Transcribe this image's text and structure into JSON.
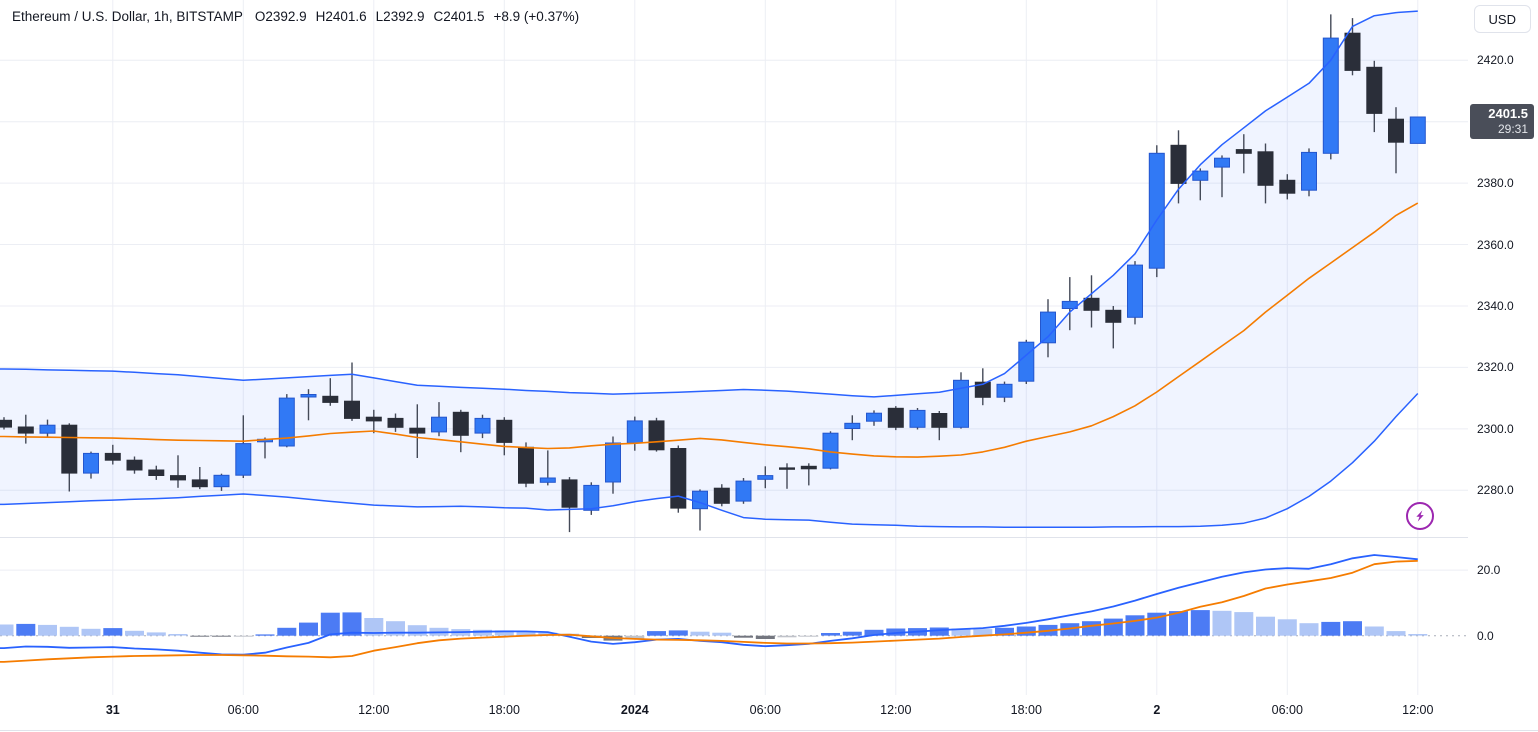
{
  "header": {
    "title": "Ethereum / U.S. Dollar, 1h, BITSTAMP",
    "o": "O2392.9",
    "h": "H2401.6",
    "l": "L2392.9",
    "c": "C2401.5",
    "change": "+8.9 (+0.37%)"
  },
  "currency_button": {
    "label": "USD"
  },
  "price_badge": {
    "price": "2401.5",
    "countdown": "29:31"
  },
  "colors": {
    "up": "#3179f5",
    "up_border": "#2456cd",
    "down": "#2a2e39",
    "down_border": "#2a2e39",
    "wick": "#444a58",
    "bollinger_band": "#2962ff",
    "bollinger_basis": "#f57c00",
    "bollinger_fill": "rgba(41,98,255,0.07)",
    "macd_line": "#2962ff",
    "signal_line": "#f57c00",
    "hist_grow_above": "#4c7bf4",
    "hist_fall_above": "#afc6f6",
    "hist_fall_below": "#73767f",
    "hist_grow_below": "#bfc2c9",
    "grid": "#eceef4",
    "zero_dash": "#a9adb8",
    "badge_bg": "#4a4e59",
    "accent_purple": "#9c27b0"
  },
  "chart_data": {
    "type": "candlestick",
    "symbol": "Ethereum / U.S. Dollar",
    "interval": "1h",
    "exchange": "BITSTAMP",
    "ohlc_display": {
      "open": 2392.9,
      "high": 2401.6,
      "low": 2392.9,
      "close": 2401.5,
      "change": "+8.9 (+0.37%)"
    },
    "last_price": 2401.5,
    "countdown": "29:31",
    "price_axis": {
      "range_top": 2439.6,
      "range_bottom": 2264.8,
      "labels": [
        {
          "label": "2420.0",
          "value": 2420
        },
        {
          "label": "2380.0",
          "value": 2380
        },
        {
          "label": "2360.0",
          "value": 2360
        },
        {
          "label": "2340.0",
          "value": 2340
        },
        {
          "label": "2320.0",
          "value": 2320
        },
        {
          "label": "2300.0",
          "value": 2300
        },
        {
          "label": "2280.0",
          "value": 2280
        }
      ],
      "gridlines": [
        2420,
        2400,
        2380,
        2360,
        2340,
        2320,
        2300,
        2280
      ]
    },
    "time_axis": [
      {
        "label": "31",
        "index": 5,
        "bold": true
      },
      {
        "label": "06:00",
        "index": 11,
        "bold": false
      },
      {
        "label": "12:00",
        "index": 17,
        "bold": false
      },
      {
        "label": "18:00",
        "index": 23,
        "bold": false
      },
      {
        "label": "2024",
        "index": 29,
        "bold": true
      },
      {
        "label": "06:00",
        "index": 35,
        "bold": false
      },
      {
        "label": "12:00",
        "index": 41,
        "bold": false
      },
      {
        "label": "18:00",
        "index": 47,
        "bold": false
      },
      {
        "label": "2",
        "index": 53,
        "bold": true
      },
      {
        "label": "06:00",
        "index": 59,
        "bold": false
      },
      {
        "label": "12:00",
        "index": 65,
        "bold": false
      }
    ],
    "candles": [
      [
        2302.8,
        2303.8,
        2299.8,
        2300.6
      ],
      [
        2300.6,
        2304.6,
        2295.2,
        2298.6
      ],
      [
        2298.6,
        2303.0,
        2297.4,
        2301.2
      ],
      [
        2301.2,
        2301.8,
        2279.6,
        2285.6
      ],
      [
        2285.6,
        2292.6,
        2283.8,
        2292.0
      ],
      [
        2292.0,
        2294.8,
        2288.4,
        2289.8
      ],
      [
        2289.8,
        2291.0,
        2285.4,
        2286.6
      ],
      [
        2286.6,
        2288.0,
        2283.4,
        2284.8
      ],
      [
        2284.8,
        2291.4,
        2280.8,
        2283.4
      ],
      [
        2283.4,
        2287.6,
        2280.4,
        2281.2
      ],
      [
        2281.2,
        2285.4,
        2279.8,
        2284.9
      ],
      [
        2284.9,
        2304.4,
        2284.0,
        2295.2
      ],
      [
        2295.8,
        2297.2,
        2290.4,
        2296.6
      ],
      [
        2294.4,
        2311.3,
        2294.0,
        2310.0
      ],
      [
        2310.4,
        2312.9,
        2302.8,
        2311.2
      ],
      [
        2310.6,
        2316.5,
        2307.5,
        2308.6
      ],
      [
        2309.0,
        2321.6,
        2302.6,
        2303.4
      ],
      [
        2303.8,
        2306.2,
        2298.6,
        2302.6
      ],
      [
        2303.4,
        2305.0,
        2299.0,
        2300.5
      ],
      [
        2300.2,
        2308.0,
        2290.5,
        2298.6
      ],
      [
        2299.0,
        2308.7,
        2297.6,
        2303.8
      ],
      [
        2305.4,
        2306.2,
        2292.4,
        2297.9
      ],
      [
        2298.6,
        2304.6,
        2297.0,
        2303.4
      ],
      [
        2302.8,
        2303.8,
        2291.4,
        2295.6
      ],
      [
        2294.0,
        2295.6,
        2281.0,
        2282.3
      ],
      [
        2282.6,
        2293.0,
        2281.6,
        2284.0
      ],
      [
        2283.4,
        2284.3,
        2266.4,
        2274.5
      ],
      [
        2273.5,
        2282.6,
        2272.0,
        2281.6
      ],
      [
        2282.7,
        2297.5,
        2278.9,
        2295.4
      ],
      [
        2295.4,
        2304.0,
        2292.9,
        2302.6
      ],
      [
        2302.6,
        2303.6,
        2292.6,
        2293.2
      ],
      [
        2293.6,
        2294.6,
        2272.7,
        2274.2
      ],
      [
        2274.0,
        2280.3,
        2266.9,
        2279.7
      ],
      [
        2280.7,
        2282.0,
        2274.8,
        2275.8
      ],
      [
        2276.5,
        2284.0,
        2275.6,
        2283.0
      ],
      [
        2283.6,
        2287.8,
        2280.7,
        2284.8
      ],
      [
        2287.3,
        2288.8,
        2280.5,
        2286.9
      ],
      [
        2287.8,
        2288.8,
        2281.6,
        2287.0
      ],
      [
        2287.2,
        2299.2,
        2286.8,
        2298.6
      ],
      [
        2300.1,
        2304.4,
        2296.3,
        2301.8
      ],
      [
        2302.5,
        2306.0,
        2301.0,
        2305.1
      ],
      [
        2306.7,
        2307.4,
        2299.6,
        2300.5
      ],
      [
        2300.5,
        2306.8,
        2299.8,
        2306.0
      ],
      [
        2305.0,
        2305.8,
        2296.3,
        2300.5
      ],
      [
        2300.5,
        2318.4,
        2300.1,
        2315.8
      ],
      [
        2315.2,
        2319.7,
        2307.7,
        2310.3
      ],
      [
        2310.3,
        2315.4,
        2308.7,
        2314.5
      ],
      [
        2315.5,
        2329.0,
        2314.6,
        2328.2
      ],
      [
        2328.0,
        2342.2,
        2323.3,
        2338.0
      ],
      [
        2339.2,
        2349.4,
        2332.1,
        2341.5
      ],
      [
        2342.5,
        2350.0,
        2333.0,
        2338.6
      ],
      [
        2338.6,
        2340.0,
        2326.2,
        2334.7
      ],
      [
        2336.3,
        2354.6,
        2334.0,
        2353.3
      ],
      [
        2352.3,
        2392.3,
        2349.4,
        2389.7
      ],
      [
        2392.3,
        2397.2,
        2373.4,
        2379.9
      ],
      [
        2380.9,
        2384.8,
        2374.4,
        2383.9
      ],
      [
        2385.2,
        2389.0,
        2375.4,
        2388.1
      ],
      [
        2390.9,
        2395.9,
        2383.2,
        2389.7
      ],
      [
        2390.2,
        2392.9,
        2373.4,
        2379.3
      ],
      [
        2380.9,
        2382.9,
        2374.7,
        2376.7
      ],
      [
        2377.7,
        2391.3,
        2375.7,
        2390.0
      ],
      [
        2389.7,
        2434.9,
        2387.7,
        2427.2
      ],
      [
        2428.8,
        2433.7,
        2415.1,
        2416.7
      ],
      [
        2417.7,
        2419.8,
        2396.6,
        2402.7
      ],
      [
        2400.8,
        2404.7,
        2383.2,
        2393.3
      ],
      [
        2392.9,
        2401.6,
        2392.9,
        2401.5
      ]
    ],
    "bollinger": {
      "upper": [
        2319.5,
        2319.4,
        2319.2,
        2319.1,
        2318.9,
        2318.8,
        2318.4,
        2318.0,
        2317.6,
        2317.0,
        2316.4,
        2315.8,
        2316.2,
        2316.6,
        2317.0,
        2317.4,
        2317.8,
        2316.6,
        2315.4,
        2314.2,
        2313.9,
        2313.5,
        2313.2,
        2312.9,
        2312.5,
        2312.2,
        2311.8,
        2311.6,
        2311.3,
        2311.5,
        2311.7,
        2311.9,
        2312.2,
        2312.5,
        2312.8,
        2312.6,
        2312.3,
        2311.8,
        2311.3,
        2310.8,
        2310.4,
        2310.9,
        2311.4,
        2311.9,
        2313.2,
        2314.5,
        2318.0,
        2324.0,
        2330.0,
        2338.0,
        2344.0,
        2350.0,
        2357.0,
        2368.0,
        2378.0,
        2386.0,
        2392.5,
        2398.0,
        2403.5,
        2408.0,
        2412.5,
        2420.0,
        2431.0,
        2434.5,
        2435.5,
        2436.0
      ],
      "basis": [
        2297.5,
        2297.4,
        2297.3,
        2297.2,
        2297.1,
        2297.0,
        2296.8,
        2296.5,
        2296.3,
        2296.2,
        2296.1,
        2296.0,
        2296.5,
        2297.0,
        2297.7,
        2298.5,
        2298.9,
        2299.3,
        2298.3,
        2297.2,
        2296.5,
        2295.8,
        2295.0,
        2294.3,
        2293.9,
        2293.6,
        2293.8,
        2294.5,
        2295.0,
        2295.3,
        2295.8,
        2296.3,
        2296.9,
        2296.4,
        2295.6,
        2294.8,
        2294.2,
        2293.5,
        2292.5,
        2291.8,
        2291.2,
        2290.9,
        2290.8,
        2291.1,
        2291.5,
        2292.5,
        2294.0,
        2296.0,
        2297.5,
        2299.0,
        2301.0,
        2304.0,
        2307.5,
        2312.0,
        2317.0,
        2322.0,
        2327.0,
        2332.0,
        2338.0,
        2343.5,
        2349.0,
        2354.0,
        2359.0,
        2364.0,
        2369.5,
        2373.5
      ],
      "lower": [
        2275.4,
        2275.7,
        2276.0,
        2276.3,
        2276.6,
        2276.8,
        2277.1,
        2277.3,
        2277.6,
        2278.0,
        2278.4,
        2278.8,
        2278.3,
        2277.8,
        2277.1,
        2276.4,
        2275.8,
        2275.2,
        2274.9,
        2274.6,
        2274.7,
        2274.8,
        2274.6,
        2274.3,
        2274.2,
        2273.6,
        2273.8,
        2274.0,
        2275.0,
        2276.3,
        2277.3,
        2278.1,
        2276.0,
        2273.5,
        2271.1,
        2270.6,
        2270.4,
        2270.3,
        2269.6,
        2269.0,
        2268.8,
        2268.6,
        2268.3,
        2268.2,
        2268.1,
        2268.1,
        2268.0,
        2268.0,
        2268.0,
        2268.0,
        2268.0,
        2268.1,
        2268.1,
        2268.2,
        2268.2,
        2268.3,
        2268.6,
        2269.3,
        2271.0,
        2274.0,
        2278.0,
        2283.0,
        2289.0,
        2296.0,
        2304.0,
        2311.5
      ]
    },
    "macd": {
      "range_top": 30.1,
      "range_bottom": -18.1,
      "axis_labels": [
        {
          "label": "20.0",
          "value": 20
        },
        {
          "label": "0.0",
          "value": 0
        }
      ],
      "macd": [
        -3.8,
        -3.3,
        -3.4,
        -3.7,
        -3.6,
        -3.5,
        -3.9,
        -4.2,
        -4.6,
        -5.2,
        -5.7,
        -5.8,
        -5.2,
        -3.6,
        -2.2,
        0.4,
        0.9,
        0.8,
        0.9,
        0.9,
        1.0,
        1.1,
        1.2,
        1.3,
        1.3,
        1.1,
        -0.3,
        -1.8,
        -2.5,
        -2.0,
        -1.2,
        -1.0,
        -1.6,
        -2.0,
        -2.8,
        -3.2,
        -2.9,
        -2.5,
        -1.6,
        -0.8,
        0.2,
        0.8,
        1.2,
        1.7,
        2.0,
        2.3,
        3.0,
        3.9,
        5.0,
        6.2,
        7.4,
        8.9,
        10.7,
        12.7,
        14.6,
        16.3,
        18.0,
        19.3,
        20.2,
        20.6,
        20.4,
        21.8,
        23.6,
        24.6,
        24.0,
        23.3
      ],
      "signal": [
        -8.0,
        -7.6,
        -7.2,
        -6.9,
        -6.6,
        -6.4,
        -6.2,
        -6.1,
        -6.0,
        -5.9,
        -5.9,
        -6.0,
        -6.1,
        -6.3,
        -6.4,
        -6.6,
        -6.2,
        -4.6,
        -3.5,
        -2.3,
        -1.4,
        -0.9,
        -0.6,
        -0.3,
        0.0,
        0.2,
        0.3,
        -0.2,
        -0.7,
        -1.0,
        -1.2,
        -1.3,
        -1.4,
        -1.6,
        -1.9,
        -2.2,
        -2.4,
        -2.4,
        -2.3,
        -2.1,
        -1.8,
        -1.5,
        -1.2,
        -0.9,
        -0.4,
        0.0,
        0.4,
        0.9,
        1.5,
        2.2,
        3.0,
        3.7,
        4.5,
        5.5,
        7.0,
        8.8,
        10.2,
        12.1,
        14.4,
        15.6,
        16.6,
        17.6,
        19.2,
        21.8,
        22.6,
        22.8
      ],
      "histogram": [
        3.4,
        3.6,
        3.3,
        2.7,
        2.1,
        2.3,
        1.5,
        1.0,
        0.5,
        -0.2,
        -0.3,
        -0.2,
        0.4,
        2.4,
        4.0,
        7.0,
        7.1,
        5.4,
        4.4,
        3.2,
        2.4,
        2.0,
        1.8,
        1.6,
        1.3,
        0.9,
        0.6,
        -0.7,
        -1.5,
        -0.9,
        1.4,
        1.6,
        1.2,
        0.9,
        -0.6,
        -1.0,
        -0.5,
        -0.2,
        0.8,
        1.2,
        1.8,
        2.2,
        2.3,
        2.5,
        2.2,
        2.0,
        2.4,
        2.8,
        3.3,
        3.8,
        4.4,
        5.2,
        6.2,
        7.0,
        7.5,
        7.8,
        7.6,
        7.2,
        5.8,
        5.0,
        3.8,
        4.2,
        4.4,
        2.8,
        1.4,
        0.5
      ]
    }
  }
}
